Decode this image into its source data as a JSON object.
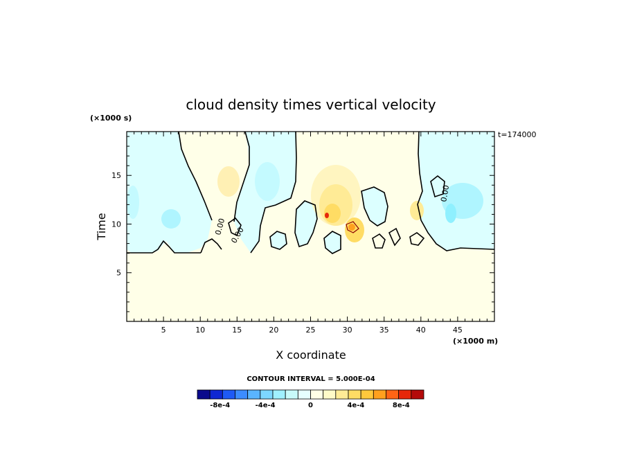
{
  "chart_data": {
    "type": "heatmap",
    "title": "cloud density times vertical velocity",
    "xlabel": "X coordinate",
    "ylabel": "Time",
    "x_unit": "(×1000 m)",
    "y_unit": "(×1000 s)",
    "timestamp": "t=174000",
    "xlim": [
      0,
      50
    ],
    "ylim": [
      0,
      19.5
    ],
    "x_ticks": [
      5,
      10,
      15,
      20,
      25,
      30,
      35,
      40,
      45
    ],
    "y_ticks": [
      5,
      10,
      15
    ],
    "contour_interval": "CONTOUR INTERVAL = 5.000E-04",
    "contour_label": "0.00",
    "colorbar": {
      "labels": [
        "-8e-4",
        "-4e-4",
        "0",
        "4e-4",
        "8e-4"
      ],
      "label_values": [
        -0.0008,
        -0.0004,
        0,
        0.0004,
        0.0008
      ],
      "range": [
        -0.001,
        0.001
      ],
      "colors": [
        "#0a0a8c",
        "#0f28d2",
        "#1e5af5",
        "#3c8cff",
        "#5ab4ff",
        "#7dd7ff",
        "#a0f0ff",
        "#c8fafa",
        "#e6ffff",
        "#ffffe6",
        "#fffac8",
        "#ffeb96",
        "#ffdc64",
        "#ffc83c",
        "#ffa01e",
        "#ff6414",
        "#e6280a",
        "#b40a0a"
      ]
    },
    "field_description_values": {
      "background_value": 0.0,
      "upper_region_min": -0.0003,
      "upper_region_max": 0.0009
    },
    "grid": false,
    "legend": "none"
  }
}
